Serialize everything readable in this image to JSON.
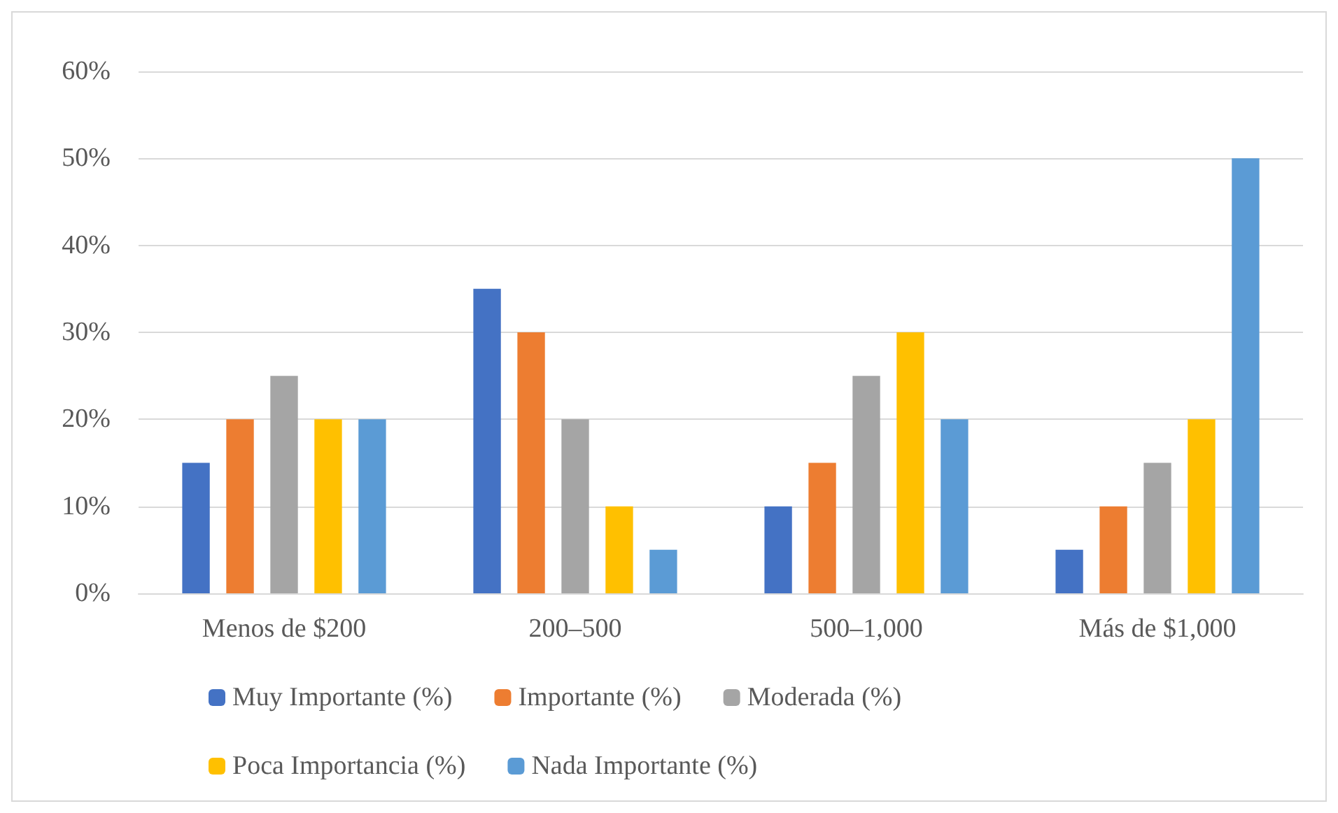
{
  "chart_data": {
    "type": "bar",
    "categories": [
      "Menos de $200",
      "200–500",
      "500–1,000",
      "Más de $1,000"
    ],
    "series": [
      {
        "name": "Muy Importante (%)",
        "color": "#4472c4",
        "values": [
          15,
          35,
          10,
          5
        ]
      },
      {
        "name": "Importante (%)",
        "color": "#ed7d31",
        "values": [
          20,
          30,
          15,
          10
        ]
      },
      {
        "name": "Moderada (%)",
        "color": "#a5a5a5",
        "values": [
          25,
          20,
          25,
          15
        ]
      },
      {
        "name": "Poca Importancia (%)",
        "color": "#ffc000",
        "values": [
          20,
          10,
          30,
          20
        ]
      },
      {
        "name": "Nada Importante (%)",
        "color": "#5b9bd5",
        "values": [
          20,
          5,
          20,
          50
        ]
      }
    ],
    "ylim": [
      0,
      60
    ],
    "yticks": [
      {
        "value": 0,
        "label": "0%"
      },
      {
        "value": 10,
        "label": "10%"
      },
      {
        "value": 20,
        "label": "20%"
      },
      {
        "value": 30,
        "label": "30%"
      },
      {
        "value": 40,
        "label": "40%"
      },
      {
        "value": 50,
        "label": "50%"
      },
      {
        "value": 60,
        "label": "60%"
      }
    ],
    "grid": "y",
    "legend": "bottom"
  }
}
